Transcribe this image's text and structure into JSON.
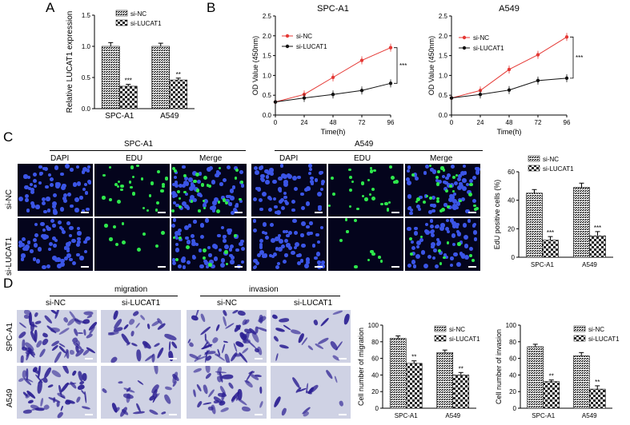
{
  "panels": {
    "A": "A",
    "B": "B",
    "C": "C",
    "D": "D"
  },
  "colors": {
    "nc": "#e53935",
    "lucat": "#111111",
    "dapi": "#3b55e6",
    "edu": "#2ee84c",
    "crystal": "#2b1f92"
  },
  "panelC": {
    "group1": "SPC-A1",
    "group2": "A549",
    "cols": [
      "DAPI",
      "EDU",
      "Merge",
      "DAPI",
      "EDU",
      "Merge"
    ],
    "rows": [
      "si-NC",
      "si-LUCAT1"
    ]
  },
  "panelD": {
    "migration": "migration",
    "invasion": "invasion",
    "cols": [
      "si-NC",
      "si-LUCAT1",
      "si-NC",
      "si-LUCAT1"
    ],
    "rows": [
      "SPC-A1",
      "A549"
    ]
  },
  "chart_data": [
    {
      "id": "A",
      "type": "bar",
      "ylabel": "Relative LUCAT1 expression",
      "categories": [
        "SPC-A1",
        "A549"
      ],
      "ylim": [
        0,
        1.5
      ],
      "yticks": [
        "0.0",
        "0.5",
        "1.0",
        "1.5"
      ],
      "series": [
        {
          "name": "si-NC",
          "values": [
            1.0,
            1.0
          ],
          "errors": [
            0.06,
            0.05
          ]
        },
        {
          "name": "si-LUCAT1",
          "values": [
            0.36,
            0.46
          ],
          "errors": [
            0.03,
            0.03
          ]
        }
      ],
      "annotations": [
        "***",
        "**"
      ]
    },
    {
      "id": "B1",
      "type": "line",
      "title": "SPC-A1",
      "ylabel": "OD Value (450nm)",
      "xlabel": "Time(h)",
      "x": [
        0,
        24,
        48,
        72,
        96
      ],
      "xticks": [
        "0",
        "24",
        "48",
        "72",
        "96"
      ],
      "ylim": [
        0,
        2.5
      ],
      "yticks": [
        "0.0",
        "0.5",
        "1.0",
        "1.5",
        "2.0",
        "2.5"
      ],
      "series": [
        {
          "name": "si-NC",
          "values": [
            0.33,
            0.52,
            0.95,
            1.38,
            1.7
          ]
        },
        {
          "name": "si-LUCAT1",
          "values": [
            0.33,
            0.43,
            0.52,
            0.62,
            0.8
          ]
        }
      ],
      "annotation": "***"
    },
    {
      "id": "B2",
      "type": "line",
      "title": "A549",
      "ylabel": "OD Value (450nm)",
      "xlabel": "Time(h)",
      "x": [
        0,
        24,
        48,
        72,
        96
      ],
      "xticks": [
        "0",
        "24",
        "48",
        "72",
        "96"
      ],
      "ylim": [
        0,
        2.5
      ],
      "yticks": [
        "0.0",
        "0.5",
        "1.0",
        "1.5",
        "2.0",
        "2.5"
      ],
      "series": [
        {
          "name": "si-NC",
          "values": [
            0.43,
            0.62,
            1.15,
            1.52,
            1.97
          ]
        },
        {
          "name": "si-LUCAT1",
          "values": [
            0.43,
            0.52,
            0.63,
            0.87,
            0.93
          ]
        }
      ],
      "annotation": "***"
    },
    {
      "id": "C",
      "type": "bar",
      "ylabel": "EdU positive cells (%)",
      "categories": [
        "SPC-A1",
        "A549"
      ],
      "ylim": [
        0,
        60
      ],
      "yticks": [
        "0",
        "20",
        "40",
        "60"
      ],
      "series": [
        {
          "name": "si-NC",
          "values": [
            45,
            49
          ],
          "errors": [
            2.5,
            3
          ]
        },
        {
          "name": "si-LUCAT1",
          "values": [
            12,
            15
          ],
          "errors": [
            2.5,
            3
          ]
        }
      ],
      "annotations": [
        "***",
        "***"
      ]
    },
    {
      "id": "D1",
      "type": "bar",
      "ylabel": "Cell number of migration",
      "categories": [
        "SPC-A1",
        "A549"
      ],
      "ylim": [
        0,
        100
      ],
      "yticks": [
        "0",
        "20",
        "40",
        "60",
        "80",
        "100"
      ],
      "series": [
        {
          "name": "si-NC",
          "values": [
            84,
            67
          ],
          "errors": [
            3,
            3
          ]
        },
        {
          "name": "si-LUCAT1",
          "values": [
            54,
            40
          ],
          "errors": [
            3,
            3
          ]
        }
      ],
      "annotations": [
        "**",
        "**"
      ]
    },
    {
      "id": "D2",
      "type": "bar",
      "ylabel": "Cell number of invasion",
      "categories": [
        "SPC-A1",
        "A549"
      ],
      "ylim": [
        0,
        100
      ],
      "yticks": [
        "0",
        "20",
        "40",
        "60",
        "80",
        "100"
      ],
      "series": [
        {
          "name": "si-NC",
          "values": [
            74,
            63
          ],
          "errors": [
            3,
            4
          ]
        },
        {
          "name": "si-LUCAT1",
          "values": [
            32,
            23
          ],
          "errors": [
            2,
            4
          ]
        }
      ],
      "annotations": [
        "**",
        "**"
      ]
    }
  ]
}
